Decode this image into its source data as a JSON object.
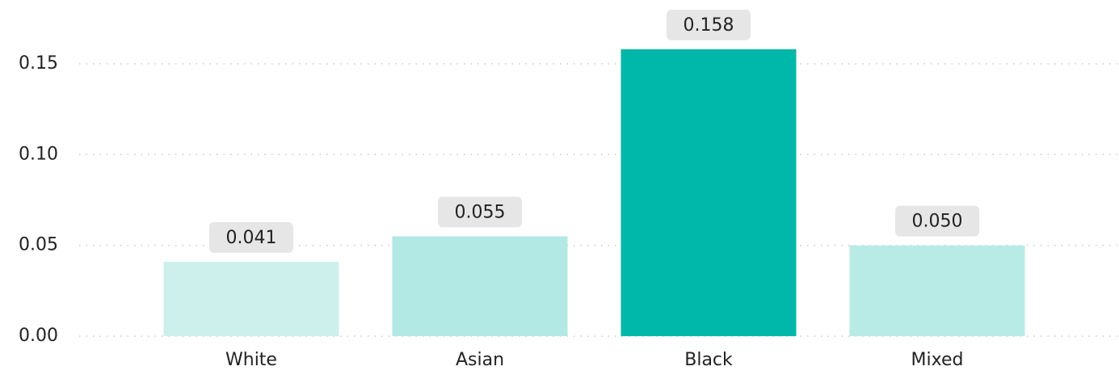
{
  "chart_data": {
    "type": "bar",
    "categories": [
      "White",
      "Asian",
      "Black",
      "Mixed"
    ],
    "values": [
      0.041,
      0.055,
      0.158,
      0.05
    ],
    "value_labels": [
      "0.041",
      "0.055",
      "0.158",
      "0.050"
    ],
    "colors": [
      "#cdf0ed",
      "#b3e9e4",
      "#00b8a9",
      "#b9ebe6"
    ],
    "ylim": [
      0,
      0.17
    ],
    "yticks": [
      {
        "value": 0,
        "label": "0.00"
      },
      {
        "value": 0.05,
        "label": "0.05"
      },
      {
        "value": 0.1,
        "label": "0.10"
      },
      {
        "value": 0.15,
        "label": "0.15"
      }
    ],
    "grid": true
  }
}
